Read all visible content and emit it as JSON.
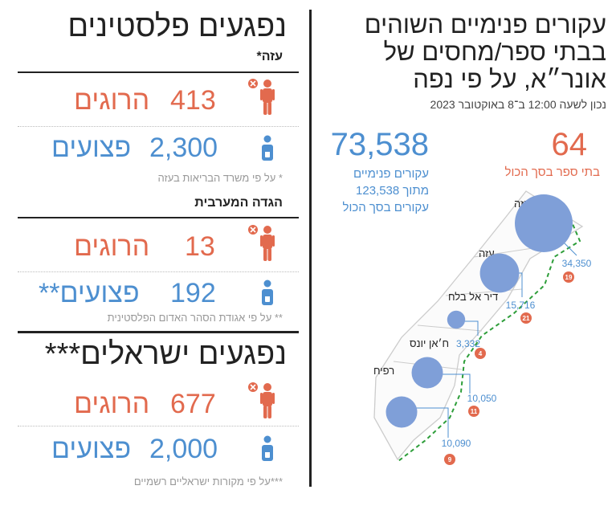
{
  "right_panel": {
    "title": "עקורים פנימיים השוהים בבתי ספר/מחסים של אונר״א, על פי נפה",
    "subtitle": "נכון לשעה 12:00 ב־8 באוקטובר 2023",
    "schools_total": "64",
    "schools_caption": "בתי ספר בסך הכול",
    "idp_total": "73,538",
    "idp_caption": "עקורים פנימיים מתוך 123,538 עקורים בסך הכול"
  },
  "chart_data": {
    "type": "bubble-map",
    "regions": [
      {
        "name": "צפון עזה",
        "displaced": "34,350",
        "schools": "19",
        "displaced_value": 34350,
        "schools_value": 19
      },
      {
        "name": "עזה",
        "displaced": "15,716",
        "schools": "21",
        "displaced_value": 15716,
        "schools_value": 21
      },
      {
        "name": "דיר אל בלח",
        "displaced": "3,332",
        "schools": "4",
        "displaced_value": 3332,
        "schools_value": 4
      },
      {
        "name": "ח׳אן יונס",
        "displaced": "10,050",
        "schools": "11",
        "displaced_value": 10050,
        "schools_value": 11
      },
      {
        "name": "רפיח",
        "displaced": "10,090",
        "schools": "9",
        "displaced_value": 10090,
        "schools_value": 9
      }
    ]
  },
  "colors": {
    "red": "#e26a4e",
    "blue": "#4d8fd0",
    "bubble": "#7f9fd8",
    "border": "#2e9e3a"
  },
  "left_panel": {
    "palestinian_title": "נפגעים פלסטינים",
    "gaza": {
      "label": "עזה*",
      "killed_num": "413",
      "killed_word": "הרוגים",
      "injured_num": "2,300",
      "injured_word": "פצועים",
      "note": "* על פי משרד הבריאות בעזה"
    },
    "west_bank": {
      "label": "הגדה המערבית",
      "killed_num": "13",
      "killed_word": "הרוגים",
      "injured_num": "192",
      "injured_word": "פצועים**",
      "note": "** על פי אגודת הסהר האדום הפלסטינית"
    },
    "israeli_title": "נפגעים ישראלים***",
    "israel": {
      "killed_num": "677",
      "killed_word": "הרוגים",
      "injured_num": "2,000",
      "injured_word": "פצועים",
      "note": "***על פי מקורות ישראליים רשמיים"
    },
    "icons": {
      "killed": "person-killed-icon",
      "injured": "person-injured-icon"
    }
  }
}
